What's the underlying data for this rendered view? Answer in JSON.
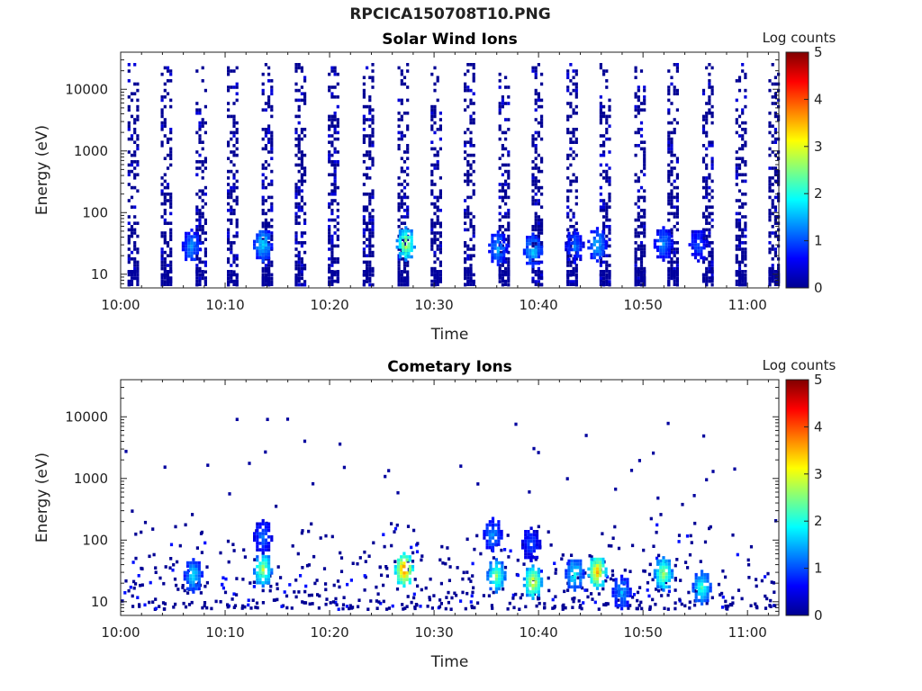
{
  "page": {
    "title": "RPCICA150708T10.PNG"
  },
  "chart_data": [
    {
      "type": "heatmap",
      "title": "Solar Wind Ions",
      "xlabel": "Time",
      "ylabel": "Energy (eV)",
      "x_range": [
        "10:00",
        "11:03"
      ],
      "x_ticks": [
        "10:00",
        "10:10",
        "10:20",
        "10:30",
        "10:40",
        "10:50",
        "11:00"
      ],
      "y_scale": "log",
      "y_range": [
        6,
        40000
      ],
      "y_ticks": [
        "10",
        "100",
        "1000",
        "10000"
      ],
      "colorbar": {
        "label": "Log counts",
        "range": [
          0,
          5
        ],
        "ticks": [
          "0",
          "1",
          "2",
          "3",
          "4",
          "5"
        ],
        "colormap": "jet"
      },
      "sweep_start_times": [
        "10:00:40",
        "10:03:50",
        "10:07:10",
        "10:10:10",
        "10:13:30",
        "10:16:40",
        "10:19:50",
        "10:23:10",
        "10:26:30",
        "10:29:40",
        "10:32:50",
        "10:36:10",
        "10:39:20",
        "10:42:40",
        "10:45:50",
        "10:49:10",
        "10:52:20",
        "10:55:40",
        "10:58:50",
        "11:02:00"
      ],
      "hotspots": [
        {
          "time": "10:06:40",
          "energy_eV": 30,
          "log_counts": 1.4
        },
        {
          "time": "10:13:30",
          "energy_eV": 32,
          "log_counts": 1.8
        },
        {
          "time": "10:27:10",
          "energy_eV": 33,
          "log_counts": 2.9
        },
        {
          "time": "10:36:00",
          "energy_eV": 28,
          "log_counts": 1.5
        },
        {
          "time": "10:39:20",
          "energy_eV": 26,
          "log_counts": 1.7
        },
        {
          "time": "10:43:20",
          "energy_eV": 30,
          "log_counts": 1.2
        },
        {
          "time": "10:45:30",
          "energy_eV": 32,
          "log_counts": 1.6
        },
        {
          "time": "10:51:50",
          "energy_eV": 33,
          "log_counts": 1.3
        },
        {
          "time": "10:55:10",
          "energy_eV": 32,
          "log_counts": 1.0
        }
      ]
    },
    {
      "type": "heatmap",
      "title": "Cometary Ions",
      "xlabel": "Time",
      "ylabel": "Energy (eV)",
      "x_range": [
        "10:00",
        "11:03"
      ],
      "x_ticks": [
        "10:00",
        "10:10",
        "10:20",
        "10:30",
        "10:40",
        "10:50",
        "11:00"
      ],
      "y_scale": "log",
      "y_range": [
        6,
        40000
      ],
      "y_ticks": [
        "10",
        "100",
        "1000",
        "10000"
      ],
      "colorbar": {
        "label": "Log counts",
        "range": [
          0,
          5
        ],
        "ticks": [
          "0",
          "1",
          "2",
          "3",
          "4",
          "5"
        ],
        "colormap": "jet"
      },
      "hotspots": [
        {
          "time": "10:06:50",
          "energy_eV": 28,
          "log_counts": 1.8
        },
        {
          "time": "10:13:30",
          "energy_eV": 35,
          "log_counts": 2.8
        },
        {
          "time": "10:13:30",
          "energy_eV": 120,
          "log_counts": 1.2
        },
        {
          "time": "10:27:00",
          "energy_eV": 35,
          "log_counts": 4.0
        },
        {
          "time": "10:35:50",
          "energy_eV": 28,
          "log_counts": 2.6
        },
        {
          "time": "10:35:30",
          "energy_eV": 130,
          "log_counts": 1.4
        },
        {
          "time": "10:39:20",
          "energy_eV": 22,
          "log_counts": 3.2
        },
        {
          "time": "10:39:10",
          "energy_eV": 90,
          "log_counts": 1.0
        },
        {
          "time": "10:43:20",
          "energy_eV": 30,
          "log_counts": 2.0
        },
        {
          "time": "10:45:30",
          "energy_eV": 32,
          "log_counts": 3.6
        },
        {
          "time": "10:51:50",
          "energy_eV": 30,
          "log_counts": 2.8
        },
        {
          "time": "10:55:30",
          "energy_eV": 18,
          "log_counts": 2.2
        },
        {
          "time": "10:47:50",
          "energy_eV": 15,
          "log_counts": 1.5
        }
      ]
    }
  ]
}
